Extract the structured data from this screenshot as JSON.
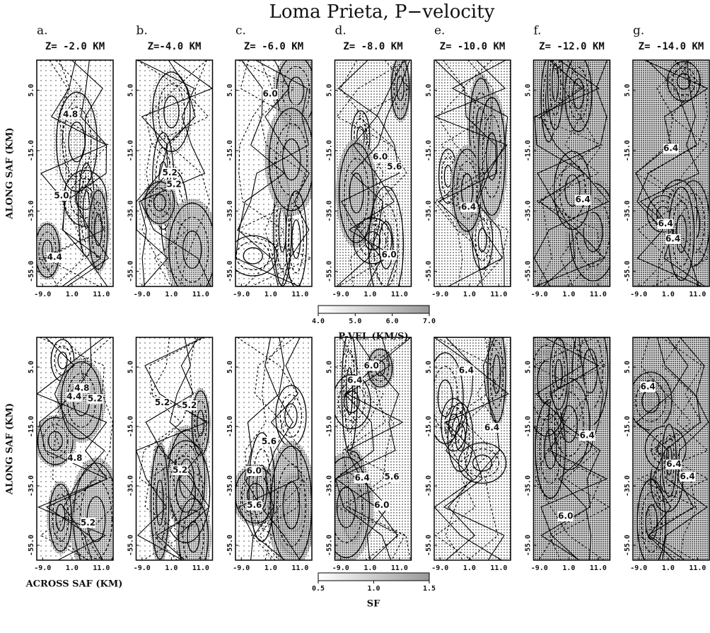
{
  "chart_data": {
    "type": "contour",
    "title": "Loma Prieta, P−velocity",
    "y_label": "ALONG SAF (KM)",
    "x_label": "ACROSS SAF (KM)",
    "xlim": [
      -11,
      15
    ],
    "xticks": [
      {
        "value": -9,
        "label": "-9.0"
      },
      {
        "value": 1,
        "label": "1.0"
      },
      {
        "value": 11,
        "label": "11.0"
      }
    ],
    "ylim": [
      -60,
      15
    ],
    "yticks": [
      {
        "value": 5,
        "label": "5.0"
      },
      {
        "value": -15,
        "label": "-15.0"
      },
      {
        "value": -35,
        "label": "-35.0"
      },
      {
        "value": -55,
        "label": "-55.0"
      }
    ],
    "panels": [
      {
        "letter": "a.",
        "depth": "Z= -2.0 KM",
        "top_row_labels": [
          "4.8",
          "4.4",
          "5.0"
        ],
        "bottom_row_labels": [
          "5.2",
          "4.8",
          "4.8",
          "5.2",
          "4.4"
        ]
      },
      {
        "letter": "b.",
        "depth": "Z=-4.0 KM",
        "top_row_labels": [
          "5.2",
          "5.2"
        ],
        "bottom_row_labels": [
          "5.2",
          "5.2",
          "5.2"
        ]
      },
      {
        "letter": "c.",
        "depth": "Z= -6.0 KM",
        "top_row_labels": [
          "6.0"
        ],
        "bottom_row_labels": [
          "6.0",
          "5.6",
          "5.6"
        ]
      },
      {
        "letter": "d.",
        "depth": "Z= -8.0 KM",
        "top_row_labels": [
          "5.6",
          "6.0",
          "6.0"
        ],
        "bottom_row_labels": [
          "5.6",
          "6.0",
          "6.4",
          "6.0",
          "6.4"
        ]
      },
      {
        "letter": "e.",
        "depth": "Z= -10.0 KM",
        "top_row_labels": [
          "6.4"
        ],
        "bottom_row_labels": [
          "6.4",
          "6.4"
        ]
      },
      {
        "letter": "f.",
        "depth": "Z= -12.0 KM",
        "top_row_labels": [
          "6.4"
        ],
        "bottom_row_labels": [
          "6.4",
          "6.0"
        ]
      },
      {
        "letter": "g.",
        "depth": "Z= -14.0 KM",
        "top_row_labels": [
          "6.4",
          "6.4",
          "6.4"
        ],
        "bottom_row_labels": [
          "6.4",
          "6.4",
          "6.4"
        ]
      }
    ],
    "colorbars": [
      {
        "label": "P-VEL (KM/S)",
        "lim": [
          4,
          7
        ],
        "ticks": [
          {
            "value": 4,
            "label": "4.0"
          },
          {
            "value": 5,
            "label": "5.0"
          },
          {
            "value": 6,
            "label": "6.0"
          },
          {
            "value": 7,
            "label": "7.0"
          }
        ]
      },
      {
        "label": "SF",
        "lim": [
          0.5,
          1.5
        ],
        "ticks": [
          0.5,
          {
            "value": 1,
            "label": "1.0"
          },
          1.5
        ]
      }
    ]
  }
}
